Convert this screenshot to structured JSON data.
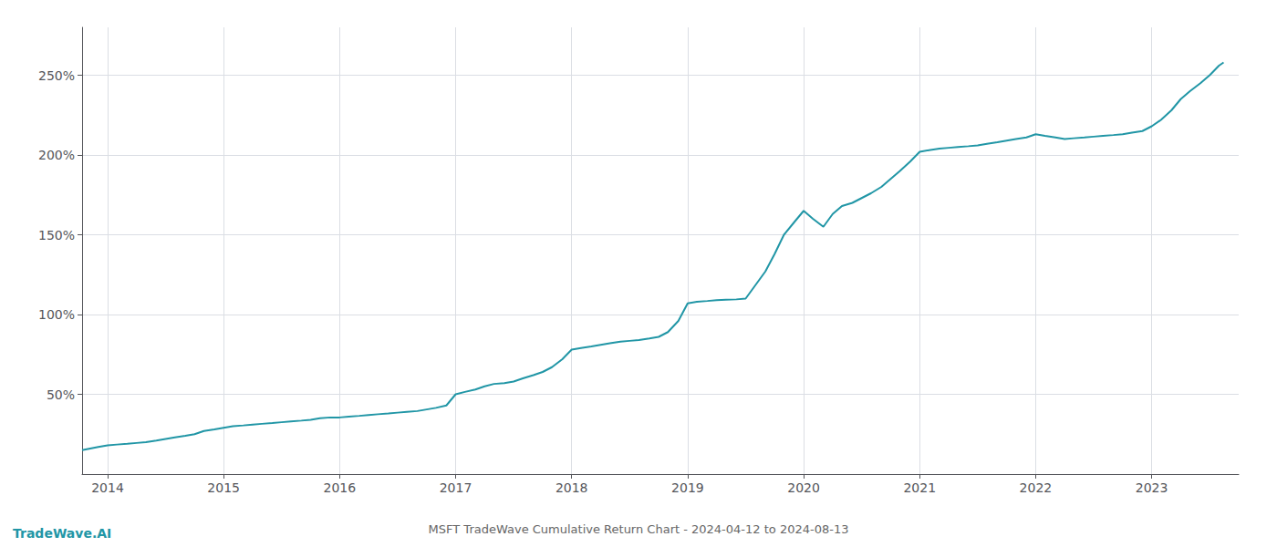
{
  "chart_data": {
    "type": "line",
    "title": "MSFT TradeWave Cumulative Return Chart - 2024-04-12 to 2024-08-13",
    "annotations": [
      "TradeWave.AI"
    ],
    "color": "#2196a6",
    "grid": true,
    "x": [
      2013.78,
      2013.85,
      2013.92,
      2014.0,
      2014.08,
      2014.17,
      2014.25,
      2014.33,
      2014.42,
      2014.5,
      2014.58,
      2014.67,
      2014.75,
      2014.83,
      2014.92,
      2015.0,
      2015.08,
      2015.17,
      2015.25,
      2015.33,
      2015.42,
      2015.5,
      2015.58,
      2015.67,
      2015.75,
      2015.83,
      2015.92,
      2016.0,
      2016.08,
      2016.17,
      2016.25,
      2016.33,
      2016.42,
      2016.5,
      2016.58,
      2016.67,
      2016.75,
      2016.83,
      2016.92,
      2017.0,
      2017.08,
      2017.17,
      2017.25,
      2017.33,
      2017.42,
      2017.5,
      2017.58,
      2017.67,
      2017.75,
      2017.83,
      2017.92,
      2018.0,
      2018.08,
      2018.17,
      2018.25,
      2018.33,
      2018.42,
      2018.5,
      2018.58,
      2018.67,
      2018.75,
      2018.83,
      2018.92,
      2019.0,
      2019.08,
      2019.17,
      2019.25,
      2019.33,
      2019.42,
      2019.5,
      2019.58,
      2019.67,
      2019.75,
      2019.83,
      2019.92,
      2020.0,
      2020.08,
      2020.17,
      2020.25,
      2020.33,
      2020.42,
      2020.5,
      2020.58,
      2020.67,
      2020.75,
      2020.83,
      2020.92,
      2021.0,
      2021.08,
      2021.17,
      2021.25,
      2021.33,
      2021.42,
      2021.5,
      2021.58,
      2021.67,
      2021.75,
      2021.83,
      2021.92,
      2022.0,
      2022.08,
      2022.17,
      2022.25,
      2022.33,
      2022.42,
      2022.5,
      2022.58,
      2022.67,
      2022.75,
      2022.83,
      2022.92,
      2023.0,
      2023.08,
      2023.17,
      2023.25,
      2023.33,
      2023.42,
      2023.5,
      2023.58,
      2023.62
    ],
    "values": [
      15,
      16,
      17,
      18,
      18.5,
      19,
      19.5,
      20,
      21,
      22,
      23,
      24,
      25,
      27,
      28,
      29,
      30,
      30.5,
      31,
      31.5,
      32,
      32.5,
      33,
      33.5,
      34,
      35,
      35.5,
      35.5,
      36,
      36.5,
      37,
      37.5,
      38,
      38.5,
      39,
      39.5,
      40.5,
      41.5,
      43,
      50,
      51.5,
      53,
      55,
      56.5,
      57,
      58,
      60,
      62,
      64,
      67,
      72,
      78,
      79,
      80,
      81,
      82,
      83,
      83.5,
      84,
      85,
      86,
      89,
      96,
      107,
      108,
      108.5,
      109,
      109.3,
      109.5,
      110,
      118,
      127,
      138,
      150,
      158,
      165,
      160,
      155,
      163,
      168,
      170,
      173,
      176,
      180,
      185,
      190,
      196,
      202,
      203,
      204,
      204.5,
      205,
      205.5,
      206,
      207,
      208,
      209,
      210,
      211,
      213,
      212,
      211,
      210,
      210.5,
      211,
      211.5,
      212,
      212.5,
      213,
      214,
      215,
      218,
      222,
      228,
      235,
      240,
      245,
      250,
      256,
      258
    ],
    "xlim": [
      2013.78,
      2023.75
    ],
    "xticks": [
      2014,
      2015,
      2016,
      2017,
      2018,
      2019,
      2020,
      2021,
      2022,
      2023
    ],
    "ylim": [
      0,
      280
    ],
    "yticks": [
      {
        "value": 50,
        "label": "50%"
      },
      {
        "value": 100,
        "label": "100%"
      },
      {
        "value": 150,
        "label": "150%"
      },
      {
        "value": 200,
        "label": "200%"
      },
      {
        "value": 250,
        "label": "250%"
      }
    ]
  }
}
